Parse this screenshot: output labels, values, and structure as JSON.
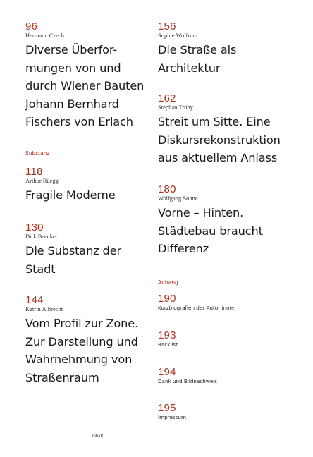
{
  "left": {
    "entries": [
      {
        "num": "96",
        "author": "Hermann Czech",
        "title_lines": [
          "Diverse Überfor-",
          "mungen von und",
          "durch Wiener Bauten",
          "Johann Bernhard",
          "Fischers von Erlach"
        ]
      },
      {
        "num": "118",
        "author": "Arthur Rüegg",
        "title_lines": [
          "Fragile Moderne"
        ]
      },
      {
        "num": "130",
        "author": "Dirk Baecker",
        "title_lines": [
          "Die Substanz der",
          "Stadt"
        ]
      },
      {
        "num": "144",
        "author": "Katrin Albrecht",
        "title_lines": [
          "Vom Profil zur Zone.",
          "Zur Darstellung und",
          "Wahrnehmung von",
          "Straßenraum"
        ]
      }
    ],
    "section_label": "Substanz"
  },
  "right": {
    "entries": [
      {
        "num": "156",
        "author": "Sophie Wolfrum",
        "title_lines": [
          "Die Straße als",
          "Architektur"
        ]
      },
      {
        "num": "162",
        "author": "Stephan Trüby",
        "title_lines": [
          "Streit um Sitte. Eine",
          "Diskursrekonstruktion",
          "aus aktuellem Anlass"
        ]
      },
      {
        "num": "180",
        "author": "Wolfgang Sonne",
        "title_lines": [
          "Vorne – Hinten.",
          "Städtebau braucht",
          "Differenz"
        ]
      }
    ],
    "section_label": "Anhang",
    "appendix": [
      {
        "num": "190",
        "title": "Kurzbiografien der Autor:innen"
      },
      {
        "num": "193",
        "title": "Backlist"
      },
      {
        "num": "194",
        "title": "Dank und Bildnachweis"
      },
      {
        "num": "195",
        "title": "Impressum"
      }
    ]
  },
  "footer": {
    "label": "Inhalt"
  },
  "colors": {
    "accent": "#a8321e",
    "text": "#1a1a1a"
  }
}
